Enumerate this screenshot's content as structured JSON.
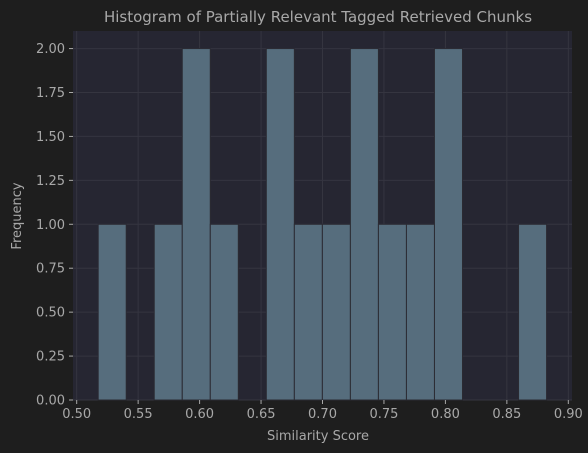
{
  "chart_data": {
    "type": "bar",
    "title": "Histogram of Partially Relevant Tagged Retrieved Chunks",
    "xlabel": "Similarity Score",
    "ylabel": "Frequency",
    "xlim": [
      0.497,
      0.903
    ],
    "ylim": [
      0,
      2.1
    ],
    "grid": true,
    "bins": [
      {
        "start": 0.5175,
        "end": 0.5403,
        "count": 1
      },
      {
        "start": 0.5403,
        "end": 0.5631,
        "count": 0
      },
      {
        "start": 0.5631,
        "end": 0.5859,
        "count": 1
      },
      {
        "start": 0.5859,
        "end": 0.6087,
        "count": 2
      },
      {
        "start": 0.6087,
        "end": 0.6315,
        "count": 1
      },
      {
        "start": 0.6315,
        "end": 0.6543,
        "count": 0
      },
      {
        "start": 0.6543,
        "end": 0.6771,
        "count": 2
      },
      {
        "start": 0.6771,
        "end": 0.6999,
        "count": 1
      },
      {
        "start": 0.6999,
        "end": 0.7227,
        "count": 1
      },
      {
        "start": 0.7227,
        "end": 0.7455,
        "count": 2
      },
      {
        "start": 0.7455,
        "end": 0.7683,
        "count": 1
      },
      {
        "start": 0.7683,
        "end": 0.7911,
        "count": 1
      },
      {
        "start": 0.7911,
        "end": 0.8139,
        "count": 2
      },
      {
        "start": 0.8139,
        "end": 0.8367,
        "count": 0
      },
      {
        "start": 0.8367,
        "end": 0.8595,
        "count": 0
      },
      {
        "start": 0.8595,
        "end": 0.8823,
        "count": 1
      }
    ],
    "xticks": [
      {
        "value": 0.5,
        "label": "0.50"
      },
      {
        "value": 0.55,
        "label": "0.55"
      },
      {
        "value": 0.6,
        "label": "0.60"
      },
      {
        "value": 0.65,
        "label": "0.65"
      },
      {
        "value": 0.7,
        "label": "0.70"
      },
      {
        "value": 0.75,
        "label": "0.75"
      },
      {
        "value": 0.8,
        "label": "0.80"
      },
      {
        "value": 0.85,
        "label": "0.85"
      },
      {
        "value": 0.9,
        "label": "0.90"
      }
    ],
    "yticks": [
      {
        "value": 0.0,
        "label": "0.00"
      },
      {
        "value": 0.25,
        "label": "0.25"
      },
      {
        "value": 0.5,
        "label": "0.50"
      },
      {
        "value": 0.75,
        "label": "0.75"
      },
      {
        "value": 1.0,
        "label": "1.00"
      },
      {
        "value": 1.25,
        "label": "1.25"
      },
      {
        "value": 1.5,
        "label": "1.50"
      },
      {
        "value": 1.75,
        "label": "1.75"
      },
      {
        "value": 2.0,
        "label": "2.00"
      }
    ],
    "colors": {
      "figure_background": "#1e1e1e",
      "plot_background": "#262632",
      "bar_fill": "#566d7d",
      "bar_edge": "#2b2b33",
      "grid": "#353540",
      "text": "#a8a8a8"
    }
  }
}
